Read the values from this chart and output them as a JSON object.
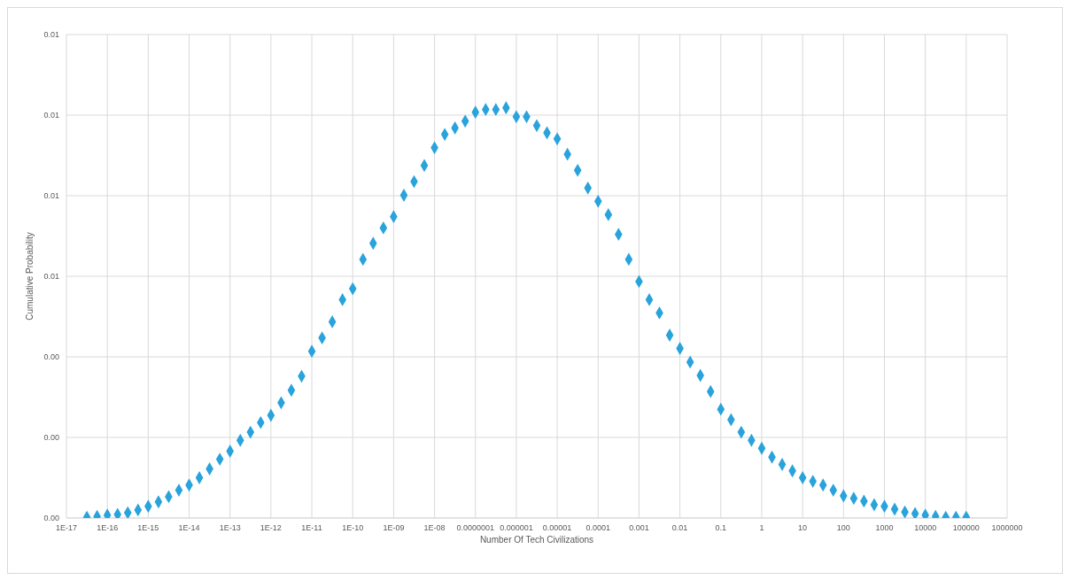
{
  "chart_data": {
    "type": "scatter",
    "xlabel": "Number Of Tech Civilizations",
    "ylabel": "Cumulative Probability",
    "log": "x",
    "grid": true,
    "marker": "diamond",
    "xlim": [
      1e-17,
      1000000
    ],
    "xticks": [
      {
        "value": 1e-17,
        "label": "1E-17"
      },
      {
        "value": 1e-16,
        "label": "1E-16"
      },
      {
        "value": 1e-15,
        "label": "1E-15"
      },
      {
        "value": 1e-14,
        "label": "1E-14"
      },
      {
        "value": 1e-13,
        "label": "1E-13"
      },
      {
        "value": 1e-12,
        "label": "1E-12"
      },
      {
        "value": 1e-11,
        "label": "1E-11"
      },
      {
        "value": 1e-10,
        "label": "1E-10"
      },
      {
        "value": 1e-09,
        "label": "1E-09"
      },
      {
        "value": 1e-08,
        "label": "1E-08"
      },
      {
        "value": 1e-07,
        "label": "0.0000001"
      },
      {
        "value": 1e-06,
        "label": "0.000001"
      },
      {
        "value": 1e-05,
        "label": "0.00001"
      },
      {
        "value": 0.0001,
        "label": "0.0001"
      },
      0.001,
      0.01,
      0.1,
      1,
      10,
      100,
      1000,
      10000,
      100000,
      1000000
    ],
    "ylim": [
      0,
      0.012
    ],
    "yticks": [
      {
        "value": 0,
        "label": "0.00"
      },
      {
        "value": 0.002,
        "label": "0.00"
      },
      {
        "value": 0.004,
        "label": "0.00"
      },
      {
        "value": 0.006,
        "label": "0.01"
      },
      {
        "value": 0.008,
        "label": "0.01"
      },
      {
        "value": 0.01,
        "label": "0.01"
      },
      {
        "value": 0.012,
        "label": "0.01"
      }
    ],
    "x": [
      3.16e-17,
      5.62e-17,
      1e-16,
      1.78e-16,
      3.16e-16,
      5.62e-16,
      1e-15,
      1.78e-15,
      3.16e-15,
      5.62e-15,
      1e-14,
      1.78e-14,
      3.16e-14,
      5.62e-14,
      1e-13,
      1.78e-13,
      3.16e-13,
      5.62e-13,
      1e-12,
      1.78e-12,
      3.16e-12,
      5.62e-12,
      1e-11,
      1.78e-11,
      3.16e-11,
      5.62e-11,
      1e-10,
      1.78e-10,
      3.16e-10,
      5.62e-10,
      1e-09,
      1.78e-09,
      3.16e-09,
      5.62e-09,
      1e-08,
      1.78e-08,
      3.16e-08,
      5.62e-08,
      1e-07,
      1.78e-07,
      3.16e-07,
      5.62e-07,
      1e-06,
      1.78e-06,
      3.16e-06,
      5.62e-06,
      1e-05,
      1.78e-05,
      3.16e-05,
      5.62e-05,
      0.0001,
      0.000178,
      0.000316,
      0.000562,
      0.001,
      0.00178,
      0.00316,
      0.00562,
      0.01,
      0.0178,
      0.0316,
      0.0562,
      0.1,
      0.178,
      0.316,
      0.562,
      1,
      1.78,
      3.16,
      5.62,
      10,
      17.8,
      31.6,
      56.2,
      100,
      178,
      316,
      562,
      1000,
      1780,
      3160,
      5620,
      10000,
      17800,
      31600,
      56200,
      100000
    ],
    "series": [
      {
        "color": "#29a3dc",
        "values": [
          2e-05,
          4e-05,
          7e-05,
          9e-05,
          0.00013,
          0.0002,
          0.00029,
          0.0004,
          0.00053,
          0.00069,
          0.00082,
          0.001,
          0.00122,
          0.00146,
          0.00166,
          0.00193,
          0.00213,
          0.00237,
          0.00255,
          0.00286,
          0.00317,
          0.00352,
          0.00414,
          0.00447,
          0.00487,
          0.00542,
          0.00569,
          0.00642,
          0.00682,
          0.0072,
          0.00748,
          0.00801,
          0.00835,
          0.00875,
          0.00919,
          0.00952,
          0.00968,
          0.00985,
          0.01007,
          0.01014,
          0.01014,
          0.01018,
          0.00996,
          0.00996,
          0.00974,
          0.00956,
          0.00941,
          0.00903,
          0.00863,
          0.00819,
          0.00786,
          0.00753,
          0.00704,
          0.00642,
          0.00587,
          0.00542,
          0.00509,
          0.00454,
          0.00421,
          0.00387,
          0.00354,
          0.00314,
          0.0027,
          0.00244,
          0.00213,
          0.00193,
          0.00173,
          0.00151,
          0.00133,
          0.00117,
          0.001,
          0.00091,
          0.00082,
          0.00069,
          0.00055,
          0.00049,
          0.00042,
          0.00033,
          0.00029,
          0.00022,
          0.00015,
          0.00011,
          7e-05,
          4e-05,
          2e-05,
          2e-05,
          2e-05
        ]
      }
    ]
  }
}
